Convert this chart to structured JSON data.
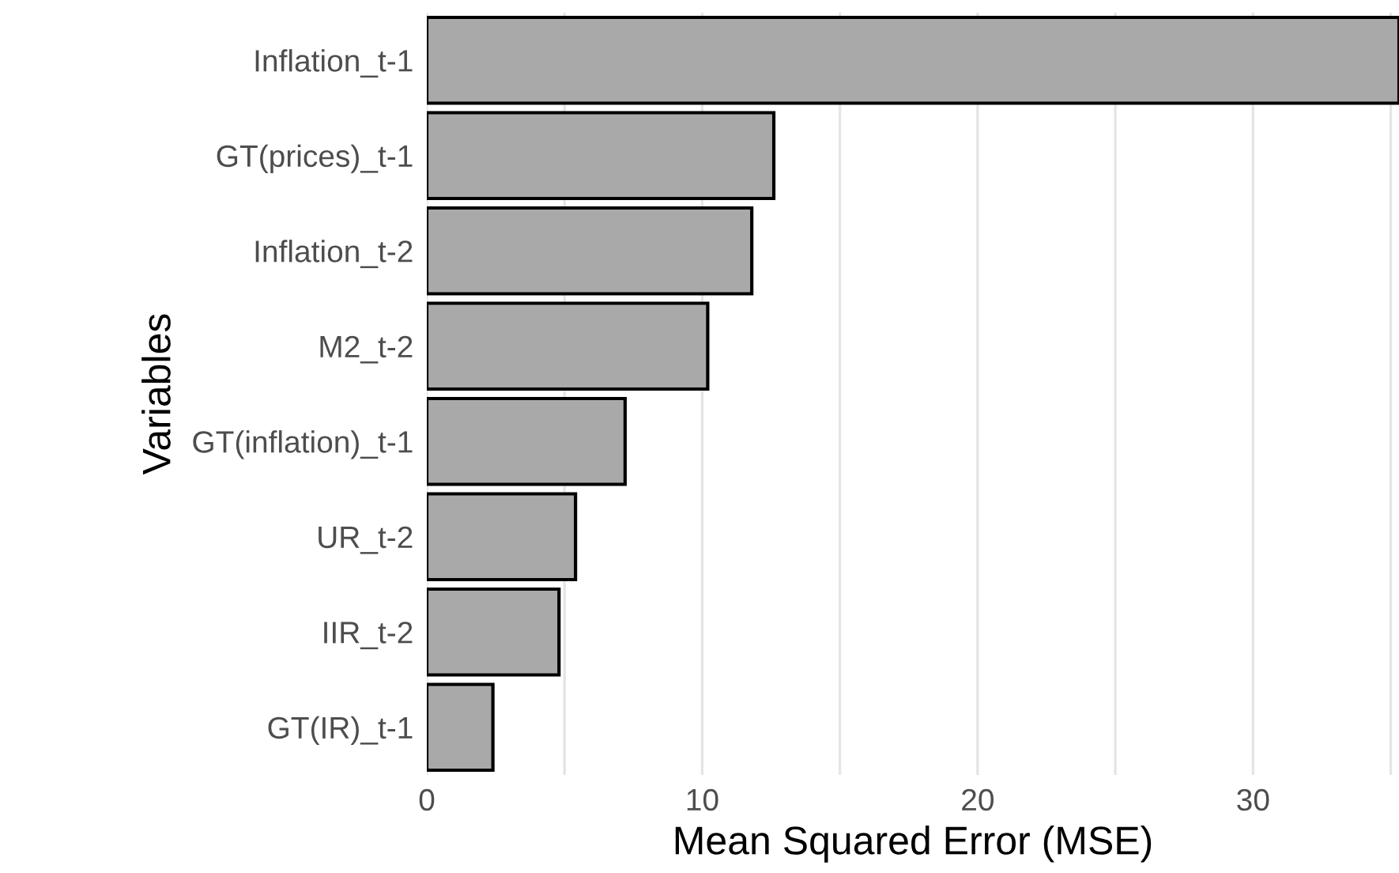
{
  "chart_data": {
    "type": "bar",
    "orientation": "horizontal",
    "xlabel": "Mean Squared Error (MSE)",
    "ylabel": "Variables",
    "categories": [
      "Inflation_t-1",
      "GT(prices)_t-1",
      "Inflation_t-2",
      "M2_t-2",
      "GT(inflation)_t-1",
      "UR_t-2",
      "IIR_t-2",
      "GT(IR)_t-1"
    ],
    "values": [
      35.3,
      12.6,
      11.8,
      10.2,
      7.2,
      5.4,
      4.8,
      2.4
    ],
    "color": "#a9a9a9",
    "xlim": [
      0,
      35.3
    ],
    "xticks": [
      0,
      {
        "value": 5,
        "label": null
      },
      10,
      {
        "value": 15,
        "label": null
      },
      20,
      {
        "value": 25,
        "label": null
      },
      30,
      {
        "value": 35,
        "label": null
      }
    ],
    "grid": "x"
  }
}
